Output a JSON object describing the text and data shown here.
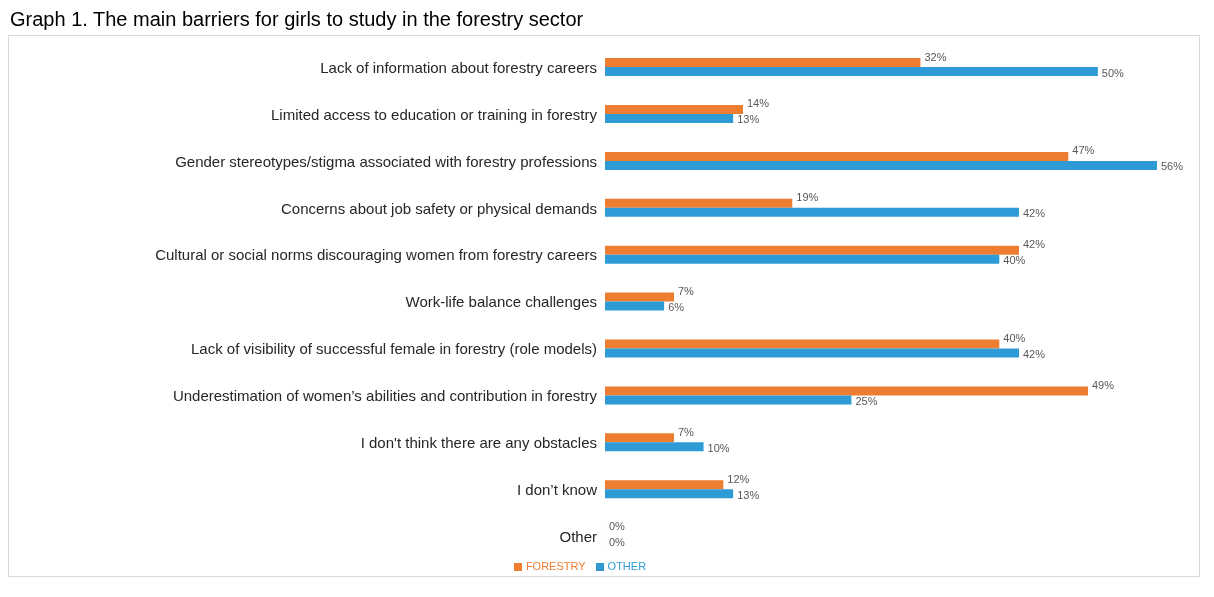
{
  "chart_data": {
    "type": "bar",
    "orientation": "horizontal",
    "title": "Graph 1. The main barriers for girls to study in the forestry sector",
    "categories": [
      "Lack of information about forestry careers",
      "Limited access to education or training in forestry",
      "Gender stereotypes/stigma associated with forestry professions",
      "Concerns about job safety or physical demands",
      "Cultural or social norms discouraging women from forestry careers",
      "Work-life balance challenges",
      "Lack of visibility of successful female in forestry (role models)",
      "Underestimation of women’s abilities and contribution in forestry",
      "I don't think there are any obstacles",
      "I don’t know",
      "Other"
    ],
    "series": [
      {
        "name": "FORESTRY",
        "color": "#ed7d31",
        "values": [
          32,
          14,
          47,
          19,
          42,
          7,
          40,
          49,
          7,
          12,
          0
        ],
        "value_labels": [
          "32%",
          "14%",
          "47%",
          "19%",
          "42%",
          "7%",
          "40%",
          "49%",
          "7%",
          "12%",
          "0%"
        ]
      },
      {
        "name": "OTHER",
        "color": "#2e9bd6",
        "values": [
          50,
          13,
          56,
          42,
          40,
          6,
          42,
          25,
          10,
          13,
          0
        ],
        "value_labels": [
          "50%",
          "13%",
          "56%",
          "42%",
          "40%",
          "6%",
          "42%",
          "25%",
          "10%",
          "13%",
          "0%"
        ]
      }
    ],
    "legend": "bottom"
  }
}
